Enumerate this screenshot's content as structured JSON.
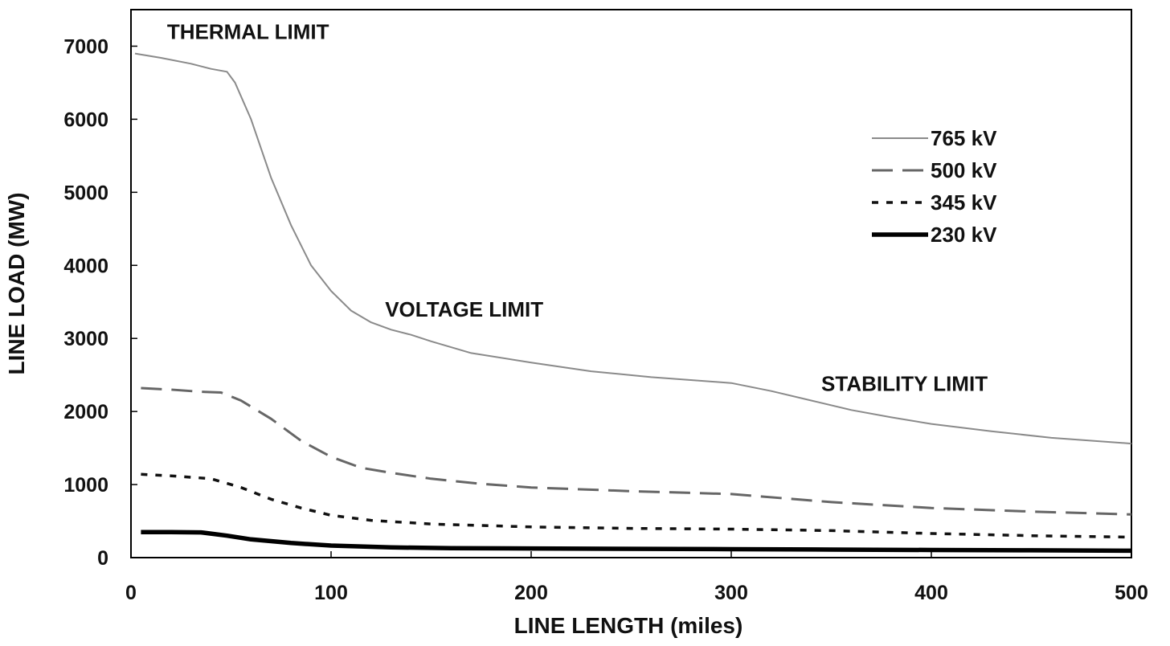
{
  "chart_data": {
    "type": "line",
    "title": "",
    "xlabel": "LINE LENGTH (miles)",
    "ylabel": "LINE LOAD (MW)",
    "xlim": [
      0,
      500
    ],
    "ylim": [
      0,
      7500
    ],
    "x_ticks": [
      0,
      100,
      200,
      300,
      400,
      500
    ],
    "y_ticks": [
      0,
      1000,
      2000,
      3000,
      4000,
      5000,
      6000,
      7000
    ],
    "grid": false,
    "legend_position": "upper-right",
    "annotations": [
      {
        "text": "THERMAL LIMIT",
        "x": 18,
        "y": 7100
      },
      {
        "text": "VOLTAGE LIMIT",
        "x": 127,
        "y": 3300
      },
      {
        "text": "STABILITY LIMIT",
        "x": 345,
        "y": 2280
      }
    ],
    "series": [
      {
        "name": "765 kV",
        "style": "solid-thin",
        "color": "#8a8a8a",
        "points": [
          [
            2,
            6900
          ],
          [
            15,
            6840
          ],
          [
            30,
            6760
          ],
          [
            40,
            6690
          ],
          [
            48,
            6650
          ],
          [
            52,
            6500
          ],
          [
            60,
            6000
          ],
          [
            70,
            5200
          ],
          [
            80,
            4550
          ],
          [
            90,
            4000
          ],
          [
            100,
            3650
          ],
          [
            110,
            3380
          ],
          [
            120,
            3220
          ],
          [
            130,
            3120
          ],
          [
            140,
            3050
          ],
          [
            150,
            2960
          ],
          [
            170,
            2800
          ],
          [
            200,
            2670
          ],
          [
            230,
            2550
          ],
          [
            260,
            2470
          ],
          [
            290,
            2410
          ],
          [
            300,
            2390
          ],
          [
            320,
            2280
          ],
          [
            340,
            2150
          ],
          [
            360,
            2020
          ],
          [
            380,
            1920
          ],
          [
            400,
            1830
          ],
          [
            430,
            1730
          ],
          [
            460,
            1640
          ],
          [
            500,
            1560
          ]
        ]
      },
      {
        "name": "500 kV",
        "style": "dashed",
        "color": "#666666",
        "points": [
          [
            5,
            2320
          ],
          [
            20,
            2300
          ],
          [
            35,
            2270
          ],
          [
            45,
            2260
          ],
          [
            55,
            2150
          ],
          [
            70,
            1900
          ],
          [
            85,
            1600
          ],
          [
            100,
            1380
          ],
          [
            115,
            1230
          ],
          [
            130,
            1160
          ],
          [
            150,
            1080
          ],
          [
            175,
            1010
          ],
          [
            200,
            960
          ],
          [
            250,
            910
          ],
          [
            300,
            870
          ],
          [
            350,
            760
          ],
          [
            400,
            680
          ],
          [
            450,
            630
          ],
          [
            500,
            590
          ]
        ]
      },
      {
        "name": "345 kV",
        "style": "dotted",
        "color": "#111111",
        "points": [
          [
            5,
            1140
          ],
          [
            20,
            1120
          ],
          [
            40,
            1080
          ],
          [
            55,
            960
          ],
          [
            70,
            800
          ],
          [
            85,
            680
          ],
          [
            100,
            580
          ],
          [
            120,
            510
          ],
          [
            150,
            460
          ],
          [
            200,
            420
          ],
          [
            250,
            400
          ],
          [
            300,
            390
          ],
          [
            350,
            370
          ],
          [
            400,
            330
          ],
          [
            450,
            300
          ],
          [
            500,
            280
          ]
        ]
      },
      {
        "name": "230 kV",
        "style": "solid-thick",
        "color": "#000000",
        "points": [
          [
            5,
            350
          ],
          [
            20,
            350
          ],
          [
            35,
            345
          ],
          [
            48,
            300
          ],
          [
            60,
            250
          ],
          [
            80,
            200
          ],
          [
            100,
            165
          ],
          [
            130,
            140
          ],
          [
            160,
            130
          ],
          [
            200,
            125
          ],
          [
            300,
            115
          ],
          [
            350,
            110
          ],
          [
            400,
            105
          ],
          [
            450,
            100
          ],
          [
            500,
            95
          ]
        ]
      }
    ]
  }
}
